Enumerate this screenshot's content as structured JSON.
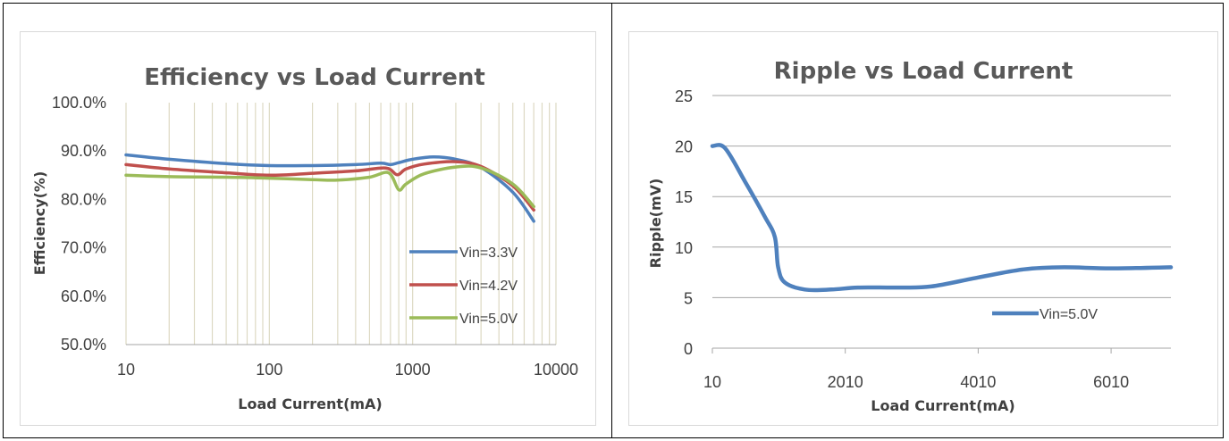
{
  "chart_data": [
    {
      "type": "line",
      "title": "Efficiency vs Load Current",
      "xlabel": "Load Current(mA)",
      "ylabel": "Efficiency(%)",
      "x_scale": "log",
      "xlim": [
        10,
        10000
      ],
      "ylim": [
        50,
        100
      ],
      "x_tick_labels": [
        "10",
        "100",
        "1000",
        "10000"
      ],
      "y_tick_labels": [
        "50.0%",
        "60.0%",
        "70.0%",
        "80.0%",
        "90.0%",
        "100.0%"
      ],
      "grid": "vertical log gridlines",
      "legend": "right",
      "series": [
        {
          "name": "Vin=3.3V",
          "color": "#4f81bd",
          "points": [
            [
              10,
              89.2
            ],
            [
              20,
              88.3
            ],
            [
              50,
              87.4
            ],
            [
              100,
              87.0
            ],
            [
              200,
              87.0
            ],
            [
              400,
              87.2
            ],
            [
              600,
              87.5
            ],
            [
              700,
              87.2
            ],
            [
              800,
              87.6
            ],
            [
              1000,
              88.3
            ],
            [
              1400,
              88.8
            ],
            [
              2000,
              88.3
            ],
            [
              3000,
              86.6
            ],
            [
              5000,
              81.5
            ],
            [
              7000,
              75.5
            ]
          ]
        },
        {
          "name": "Vin=4.2V",
          "color": "#c0504d",
          "points": [
            [
              10,
              87.2
            ],
            [
              20,
              86.3
            ],
            [
              50,
              85.5
            ],
            [
              100,
              85.0
            ],
            [
              200,
              85.4
            ],
            [
              400,
              85.9
            ],
            [
              650,
              86.5
            ],
            [
              780,
              85.1
            ],
            [
              900,
              86.3
            ],
            [
              1200,
              87.3
            ],
            [
              2000,
              87.8
            ],
            [
              3000,
              86.8
            ],
            [
              5000,
              82.8
            ],
            [
              7000,
              77.8
            ]
          ]
        },
        {
          "name": "Vin=5.0V",
          "color": "#9bbb59",
          "points": [
            [
              10,
              85.0
            ],
            [
              20,
              84.7
            ],
            [
              50,
              84.6
            ],
            [
              100,
              84.4
            ],
            [
              200,
              84.1
            ],
            [
              300,
              84.0
            ],
            [
              500,
              84.6
            ],
            [
              680,
              85.5
            ],
            [
              800,
              82.0
            ],
            [
              900,
              83.2
            ],
            [
              1200,
              85.3
            ],
            [
              2000,
              86.7
            ],
            [
              3000,
              86.5
            ],
            [
              5000,
              83.2
            ],
            [
              7000,
              78.5
            ]
          ]
        }
      ]
    },
    {
      "type": "line",
      "title": "Ripple vs Load Current",
      "xlabel": "Load Current(mA)",
      "ylabel": "Ripple(mV)",
      "xlim": [
        10,
        6910
      ],
      "ylim": [
        0,
        25
      ],
      "x_tick_labels": [
        "10",
        "2010",
        "4010",
        "6010"
      ],
      "y_tick_labels": [
        "0",
        "5",
        "10",
        "15",
        "20",
        "25"
      ],
      "grid": "horizontal gridlines",
      "legend": "right",
      "series": [
        {
          "name": "Vin=5.0V",
          "color": "#4f81bd",
          "points": [
            [
              10,
              20.0
            ],
            [
              200,
              19.8
            ],
            [
              500,
              16.5
            ],
            [
              800,
              13.0
            ],
            [
              950,
              11.0
            ],
            [
              1000,
              8.0
            ],
            [
              1100,
              6.5
            ],
            [
              1400,
              5.8
            ],
            [
              1800,
              5.8
            ],
            [
              2200,
              6.0
            ],
            [
              2800,
              6.0
            ],
            [
              3300,
              6.1
            ],
            [
              4010,
              7.0
            ],
            [
              4700,
              7.8
            ],
            [
              5300,
              8.0
            ],
            [
              6000,
              7.9
            ],
            [
              6910,
              8.0
            ]
          ]
        }
      ]
    }
  ]
}
